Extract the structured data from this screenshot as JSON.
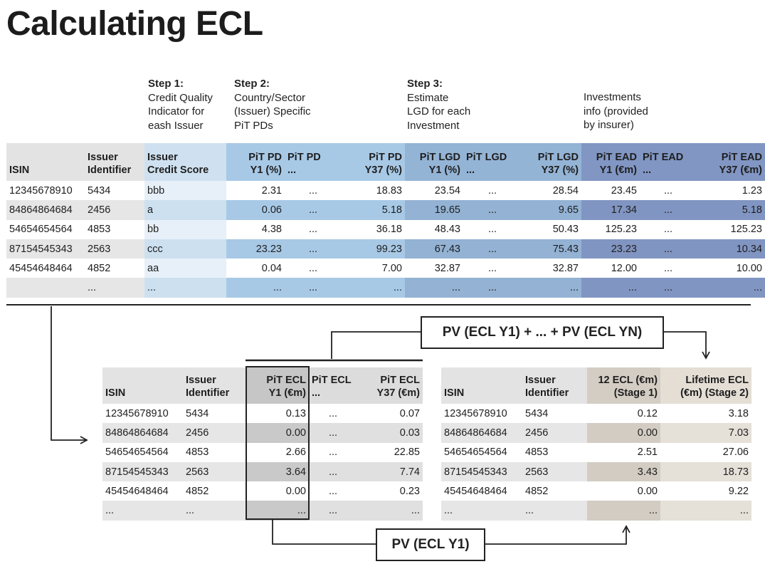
{
  "title": "Calculating ECL",
  "steps": {
    "step1": {
      "label": "Step 1:",
      "lines": [
        "Credit Quality",
        "Indicator for",
        "eash Issuer"
      ]
    },
    "step2": {
      "label": "Step 2:",
      "lines": [
        "Country/Sector",
        "(Issuer) Specific",
        "PiT PDs"
      ]
    },
    "step3": {
      "label": "Step 3:",
      "lines": [
        "Estimate",
        "LGD for each",
        "Investment"
      ]
    },
    "investments": {
      "lines": [
        "Investments",
        "info (provided",
        "by insurer)"
      ]
    }
  },
  "top_table": {
    "headers": [
      [
        "ISIN"
      ],
      [
        "Issuer",
        "Identifier"
      ],
      [
        "Issuer",
        "Credit Score"
      ],
      [
        "PiT PD",
        "Y1 (%)"
      ],
      [
        "PiT PD",
        "..."
      ],
      [
        "PiT PD",
        "Y37 (%)"
      ],
      [
        "PiT LGD",
        "Y1 (%)"
      ],
      [
        "PiT LGD",
        "..."
      ],
      [
        "PiT LGD",
        "Y37 (%)"
      ],
      [
        "PiT EAD",
        "Y1 (€m)"
      ],
      [
        "PiT EAD",
        "..."
      ],
      [
        "PiT EAD",
        "Y37 (€m)"
      ]
    ],
    "rows": [
      [
        "12345678910",
        "5434",
        "bbb",
        "2.31",
        "...",
        "18.83",
        "23.54",
        "...",
        "28.54",
        "23.45",
        "...",
        "1.23"
      ],
      [
        "84864864684",
        "2456",
        "a",
        "0.06",
        "...",
        "5.18",
        "19.65",
        "...",
        "9.65",
        "17.34",
        "...",
        "5.18"
      ],
      [
        "54654654564",
        "4853",
        "bb",
        "4.38",
        "...",
        "36.18",
        "48.43",
        "...",
        "50.43",
        "125.23",
        "...",
        "125.23"
      ],
      [
        "87154545343",
        "2563",
        "ccc",
        "23.23",
        "...",
        "99.23",
        "67.43",
        "...",
        "75.43",
        "23.23",
        "...",
        "10.34"
      ],
      [
        "45454648464",
        "4852",
        "aa",
        "0.04",
        "...",
        "7.00",
        "32.87",
        "...",
        "32.87",
        "12.00",
        "...",
        "10.00"
      ],
      [
        "",
        "...",
        "...",
        "...",
        "...",
        "...",
        "...",
        "...",
        "...",
        "...",
        "...",
        "..."
      ]
    ]
  },
  "ecl_table": {
    "headers": [
      [
        "ISIN"
      ],
      [
        "Issuer",
        "Identifier"
      ],
      [
        "PiT ECL",
        "Y1 (€m)"
      ],
      [
        "PiT ECL",
        "..."
      ],
      [
        "PiT ECL",
        "Y37 (€m)"
      ]
    ],
    "rows": [
      [
        "12345678910",
        "5434",
        "0.13",
        "...",
        "0.07"
      ],
      [
        "84864864684",
        "2456",
        "0.00",
        "...",
        "0.03"
      ],
      [
        "54654654564",
        "4853",
        "2.66",
        "...",
        "22.85"
      ],
      [
        "87154545343",
        "2563",
        "3.64",
        "...",
        "7.74"
      ],
      [
        "45454648464",
        "4852",
        "0.00",
        "...",
        "0.23"
      ],
      [
        "...",
        "...",
        "...",
        "...",
        "..."
      ]
    ]
  },
  "stage_table": {
    "headers": [
      [
        "ISIN"
      ],
      [
        "Issuer",
        "Identifier"
      ],
      [
        "12 ECL (€m)",
        "(Stage 1)"
      ],
      [
        "Lifetime ECL",
        "(€m) (Stage 2)"
      ]
    ],
    "rows": [
      [
        "12345678910",
        "5434",
        "0.12",
        "3.18"
      ],
      [
        "84864864684",
        "2456",
        "0.00",
        "7.03"
      ],
      [
        "54654654564",
        "4853",
        "2.51",
        "27.06"
      ],
      [
        "87154545343",
        "2563",
        "3.43",
        "18.73"
      ],
      [
        "45454648464",
        "4852",
        "0.00",
        "9.22"
      ],
      [
        "...",
        "...",
        "...",
        "..."
      ]
    ]
  },
  "boxes": {
    "pv_sum": "PV (ECL Y1) + ... + PV (ECL YN)",
    "pv_y1": "PV (ECL Y1)"
  }
}
